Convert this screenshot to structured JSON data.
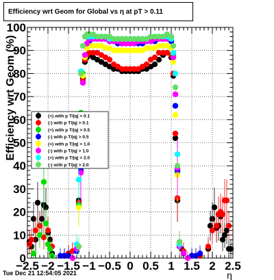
{
  "header": {
    "title": "Efficiency wrt Geom for Global vs   η at pT > 0.11"
  },
  "footer": {
    "date": "Tue Dec 21 12:54:05 2021"
  },
  "chart_data": {
    "type": "scatter",
    "title": "Efficiency wrt Geom for Global vs   η at pT > 0.11",
    "xlabel": "η",
    "ylabel": "Efficiency wrt Geom (%)",
    "xlim": [
      -2.5,
      2.5
    ],
    "ylim": [
      0,
      100
    ],
    "grid": true,
    "legend_position": "left-middle",
    "x_ticks": [
      -2.5,
      -2,
      -1.5,
      -1,
      -0.5,
      0,
      0.5,
      1,
      1.5,
      2,
      2.5
    ],
    "x_tick_labels": [
      "−2.5",
      "−2",
      "−1.5",
      "−1",
      "−0.5",
      "0",
      "0.5",
      "1",
      "1.5",
      "2",
      "2.5"
    ],
    "y_ticks": [
      0,
      10,
      20,
      30,
      40,
      50,
      60,
      70,
      80,
      90,
      100
    ],
    "y_tick_labels": [
      "0",
      "10",
      "20",
      "30",
      "40",
      "50",
      "60",
      "70",
      "80",
      "90",
      "100"
    ],
    "series": [
      {
        "name": "(+) with p T/|q| > 0.1",
        "color": "#000000",
        "x": [
          -2.45,
          -2.4,
          -2.35,
          -2.3,
          -2.25,
          -2.2,
          -2.15,
          -2.1,
          -2.05,
          -2.0,
          -1.95,
          -1.9,
          -1.6,
          -1.5,
          -1.4,
          -1.3,
          -1.25,
          -1.2,
          -1.15,
          -1.1,
          -1.05,
          -1.0,
          -0.9,
          -0.8,
          -0.7,
          -0.6,
          -0.5,
          -0.4,
          -0.3,
          -0.2,
          -0.1,
          0.0,
          0.1,
          0.2,
          0.3,
          0.4,
          0.5,
          0.6,
          0.7,
          0.8,
          0.9,
          1.0,
          1.05,
          1.1,
          1.15,
          1.2,
          1.25,
          1.3,
          1.5,
          1.6,
          1.7,
          1.9,
          1.95,
          2.0,
          2.05,
          2.1,
          2.15,
          2.2,
          2.25,
          2.3,
          2.35,
          2.4,
          2.45
        ],
        "y": [
          7,
          5,
          17,
          8,
          24,
          14,
          17,
          23,
          22,
          11,
          8,
          2,
          1,
          2,
          3,
          4,
          25,
          52,
          78,
          85,
          87,
          88,
          87,
          86,
          85,
          84,
          83,
          82,
          82,
          81,
          81,
          81,
          81,
          81,
          82,
          82,
          83,
          84,
          86,
          88,
          89,
          87,
          79,
          52,
          25,
          6,
          4,
          2,
          1,
          1,
          1,
          4,
          14,
          17,
          22,
          13,
          14,
          18,
          8,
          10,
          12,
          4,
          4
        ]
      },
      {
        "name": "(-) with p T/|q| > 0.1",
        "color": "#ff0000",
        "x": [
          -2.45,
          -2.4,
          -2.3,
          -2.2,
          -2.1,
          -2.0,
          -1.9,
          -1.5,
          -1.4,
          -1.3,
          -1.25,
          -1.2,
          -1.15,
          -1.1,
          -1.05,
          -1.0,
          -0.9,
          -0.8,
          -0.7,
          -0.6,
          -0.5,
          -0.4,
          -0.3,
          -0.2,
          -0.1,
          0.0,
          0.1,
          0.2,
          0.3,
          0.4,
          0.5,
          0.6,
          0.7,
          0.8,
          0.9,
          1.0,
          1.05,
          1.1,
          1.15,
          1.2,
          1.3,
          1.6,
          1.7,
          1.9,
          2.0,
          2.1,
          2.15,
          2.2,
          2.25,
          2.3,
          2.35,
          2.4
        ],
        "y": [
          6,
          8,
          12,
          14,
          9,
          12,
          5,
          2,
          3,
          3,
          24,
          50,
          77,
          86,
          88,
          89,
          89,
          89,
          88,
          87,
          86,
          84,
          83,
          82,
          82,
          82,
          82,
          82,
          83,
          84,
          86,
          87,
          89,
          89,
          89,
          88,
          80,
          54,
          26,
          7,
          3,
          1,
          1,
          5,
          12,
          14,
          19,
          20,
          19,
          25,
          25,
          14
        ]
      },
      {
        "name": "(+) with p T/|q| > 0.5",
        "color": "#00dd00",
        "x": [
          -2.35,
          -2.2,
          -2.1,
          -2.05,
          -2.0,
          -1.95,
          -1.9,
          -1.5,
          -1.3,
          -1.25,
          -1.2,
          -1.15,
          -1.1,
          -1.05,
          -1.0,
          -0.9,
          -0.8,
          -0.7,
          -0.6,
          -0.5,
          -0.4,
          -0.3,
          -0.2,
          -0.1,
          0.0,
          0.1,
          0.2,
          0.3,
          0.4,
          0.5,
          0.6,
          0.7,
          0.8,
          0.9,
          1.0,
          1.05,
          1.1,
          1.15,
          1.2,
          1.3
        ],
        "y": [
          2,
          10,
          33,
          15,
          6,
          4,
          1,
          1,
          4,
          23,
          63,
          80,
          88,
          93,
          94,
          95,
          95,
          95,
          95,
          94,
          94,
          94,
          93,
          93,
          93,
          93,
          93,
          94,
          94,
          94,
          94,
          95,
          95,
          96,
          94,
          88,
          66,
          37,
          5,
          2
        ]
      },
      {
        "name": "(-) with p T/|q| > 0.5",
        "color": "#0000ff",
        "x": [
          -1.7,
          -1.6,
          -1.5,
          -1.3,
          -1.2,
          -1.15,
          -1.1,
          -1.05,
          -1.0,
          -0.9,
          -0.8,
          -0.7,
          -0.6,
          -0.5,
          -0.4,
          -0.3,
          -0.2,
          -0.1,
          0.0,
          0.1,
          0.2,
          0.3,
          0.4,
          0.5,
          0.6,
          0.7,
          0.8,
          0.9,
          1.0,
          1.05,
          1.1,
          1.15,
          1.2,
          1.5,
          1.6,
          1.7
        ],
        "y": [
          1,
          1,
          1,
          3,
          38,
          76,
          88,
          93,
          94,
          95,
          95,
          95,
          95,
          94,
          94,
          93,
          93,
          93,
          93,
          93,
          93,
          93,
          94,
          94,
          94,
          95,
          95,
          95,
          94,
          87,
          66,
          38,
          5,
          1,
          1,
          2
        ]
      },
      {
        "name": "(+) with p T/|q| > 1.0",
        "color": "#ffff00",
        "x": [
          -1.25,
          -1.2,
          -1.15,
          -1.1,
          -1.05,
          -1.0,
          -0.9,
          -0.8,
          -0.7,
          -0.6,
          -0.5,
          -0.4,
          -0.3,
          -0.2,
          -0.1,
          0.0,
          0.1,
          0.2,
          0.3,
          0.4,
          0.5,
          0.6,
          0.7,
          0.8,
          0.9,
          1.0,
          1.05,
          1.1,
          1.15
        ],
        "y": [
          22,
          62,
          79,
          87,
          91,
          92,
          92,
          92,
          92,
          91,
          91,
          90,
          90,
          90,
          90,
          90,
          90,
          90,
          90,
          91,
          91,
          91,
          92,
          92,
          92,
          91,
          85,
          62,
          36
        ]
      },
      {
        "name": "(-) with p T/|q| > 1.0",
        "color": "#ff00ff",
        "x": [
          -1.4,
          -1.3,
          -1.2,
          -1.15,
          -1.1,
          -1.05,
          -1.0,
          -0.9,
          -0.8,
          -0.7,
          -0.6,
          -0.5,
          -0.4,
          -0.3,
          -0.2,
          -0.1,
          0.0,
          0.1,
          0.2,
          0.3,
          0.4,
          0.5,
          0.6,
          0.7,
          0.8,
          0.9,
          1.0,
          1.05,
          1.1,
          1.15,
          1.2,
          1.3,
          1.4
        ],
        "y": [
          0,
          4,
          37,
          76,
          88,
          93,
          95,
          95,
          95,
          95,
          95,
          94,
          94,
          94,
          93,
          93,
          93,
          93,
          94,
          94,
          94,
          94,
          95,
          95,
          95,
          95,
          95,
          87,
          71,
          39,
          5,
          2,
          0
        ]
      },
      {
        "name": "(+) with p T/|q| > 2.0",
        "color": "#00ffff",
        "x": [
          -1.3,
          -1.25,
          -1.2,
          -1.15,
          -1.1,
          -1.05,
          -1.0,
          -0.9,
          -0.8,
          -0.7,
          -0.6,
          -0.5,
          -0.4,
          -0.3,
          -0.2,
          -0.1,
          0.0,
          0.1,
          0.2,
          0.3,
          0.4,
          0.5,
          0.6,
          0.7,
          0.8,
          0.9,
          1.0,
          1.05,
          1.1,
          1.15,
          1.2
        ],
        "y": [
          6,
          34,
          81,
          92,
          96,
          96,
          96,
          96,
          96,
          96,
          96,
          95,
          95,
          95,
          95,
          95,
          95,
          95,
          95,
          95,
          95,
          96,
          96,
          96,
          96,
          96,
          95,
          89,
          80,
          45,
          6
        ]
      },
      {
        "name": "(-) with p T/|q| > 2.0",
        "color": "#66dd66",
        "x": [
          -1.25,
          -1.2,
          -1.15,
          -1.1,
          -1.05,
          -1.0,
          -0.9,
          -0.8,
          -0.7,
          -0.6,
          -0.5,
          -0.4,
          -0.3,
          -0.2,
          -0.1,
          0.0,
          0.1,
          0.2,
          0.3,
          0.4,
          0.5,
          0.6,
          0.7,
          0.8,
          0.9,
          1.0,
          1.05,
          1.1,
          1.15,
          1.2
        ],
        "y": [
          5,
          80,
          92,
          96,
          97,
          97,
          97,
          96,
          96,
          96,
          96,
          95,
          95,
          95,
          95,
          95,
          95,
          95,
          95,
          95,
          96,
          96,
          96,
          96,
          97,
          96,
          92,
          74,
          40,
          7
        ]
      }
    ]
  }
}
